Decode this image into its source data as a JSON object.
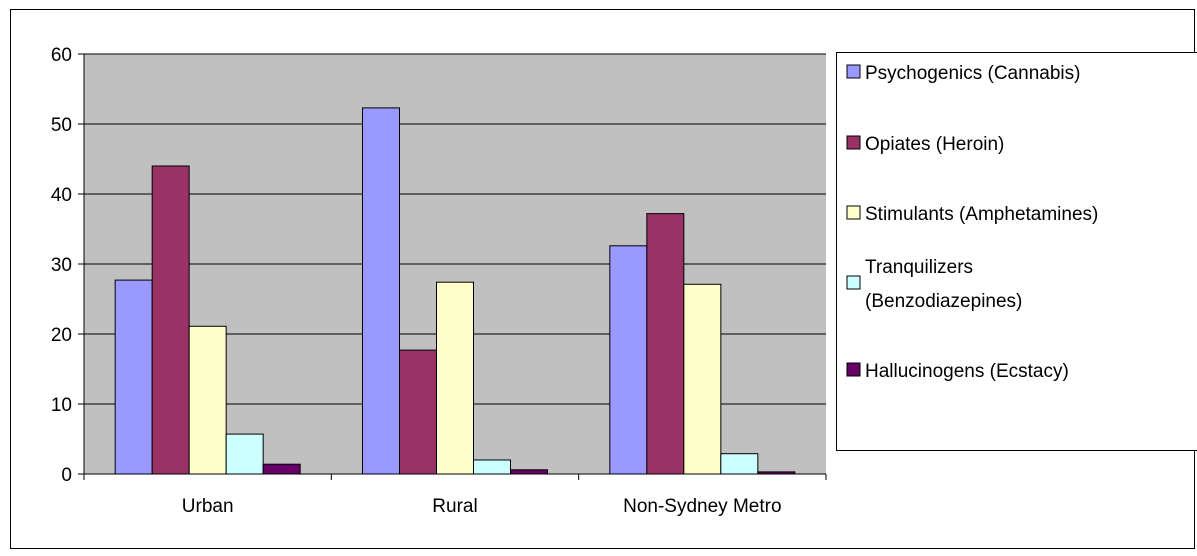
{
  "chart_data": {
    "type": "bar",
    "categories": [
      "Urban",
      "Rural",
      "Non-Sydney Metro"
    ],
    "series": [
      {
        "name": "Psychogenics (Cannabis)",
        "color": "#9999ff",
        "values": [
          27.7,
          52.3,
          32.6
        ]
      },
      {
        "name": "Opiates (Heroin)",
        "color": "#993366",
        "values": [
          44.0,
          17.7,
          37.2
        ]
      },
      {
        "name": "Stimulants (Amphetamines)",
        "color": "#ffffcc",
        "values": [
          21.1,
          27.4,
          27.1
        ]
      },
      {
        "name": "Tranquilizers (Benzodiazepines)",
        "color": "#ccffff",
        "values": [
          5.7,
          2.0,
          2.9
        ]
      },
      {
        "name": "Hallucinogens (Ecstacy)",
        "color": "#660066",
        "values": [
          1.4,
          0.6,
          0.3
        ]
      }
    ],
    "ylim": [
      0,
      60
    ],
    "yticks": [
      "0",
      "10",
      "20",
      "30",
      "40",
      "50",
      "60"
    ],
    "grid": true,
    "plot_background": "#c0c0c0",
    "legend_position": "right"
  }
}
